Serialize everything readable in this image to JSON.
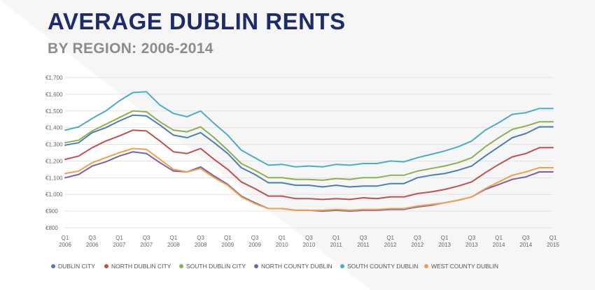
{
  "page": {
    "title": "AVERAGE DUBLIN RENTS",
    "subtitle": "BY REGION: 2006-2014"
  },
  "chart_data": {
    "type": "line",
    "title": "AVERAGE DUBLIN RENTS",
    "subtitle": "BY REGION: 2006-2014",
    "xlabel": "",
    "ylabel": "",
    "ylim": [
      800,
      1700
    ],
    "yticks": [
      800,
      900,
      1000,
      1100,
      1200,
      1300,
      1400,
      1500,
      1600,
      1700
    ],
    "ytick_labels": [
      "€800",
      "€900",
      "€1,000",
      "€1,100",
      "€1,200",
      "€1,300",
      "€1,400",
      "€1,500",
      "€1,600",
      "€1,700"
    ],
    "xtick_labels": [
      {
        "q": "Q1",
        "y": "2006"
      },
      {
        "q": "Q3",
        "y": "2006"
      },
      {
        "q": "Q1",
        "y": "2007"
      },
      {
        "q": "Q3",
        "y": "2007"
      },
      {
        "q": "Q1",
        "y": "2008"
      },
      {
        "q": "Q3",
        "y": "2008"
      },
      {
        "q": "Q1",
        "y": "2009"
      },
      {
        "q": "Q3",
        "y": "2009"
      },
      {
        "q": "Q1",
        "y": "2010"
      },
      {
        "q": "Q3",
        "y": "2010"
      },
      {
        "q": "Q1",
        "y": "2011"
      },
      {
        "q": "Q3",
        "y": "2011"
      },
      {
        "q": "Q1",
        "y": "2012"
      },
      {
        "q": "Q3",
        "y": "2012"
      },
      {
        "q": "Q1",
        "y": "2013"
      },
      {
        "q": "Q3",
        "y": "2013"
      },
      {
        "q": "Q1",
        "y": "2014"
      },
      {
        "q": "Q3",
        "y": "2014"
      },
      {
        "q": "Q1",
        "y": "2015"
      }
    ],
    "grid": true,
    "legend": "bottom",
    "series": [
      {
        "name": "DUBLIN CITY",
        "color": "#4a7fb5",
        "values": [
          1295,
          1310,
          1370,
          1400,
          1440,
          1475,
          1470,
          1415,
          1355,
          1340,
          1370,
          1310,
          1245,
          1160,
          1120,
          1070,
          1070,
          1055,
          1055,
          1045,
          1055,
          1045,
          1050,
          1050,
          1065,
          1065,
          1100,
          1115,
          1125,
          1145,
          1170,
          1230,
          1285,
          1340,
          1365,
          1405,
          1405
        ]
      },
      {
        "name": "NORTH DUBLIN CITY",
        "color": "#c0504d",
        "values": [
          1210,
          1230,
          1280,
          1320,
          1350,
          1385,
          1380,
          1320,
          1255,
          1245,
          1275,
          1210,
          1150,
          1075,
          1035,
          990,
          990,
          975,
          975,
          970,
          975,
          970,
          980,
          975,
          985,
          985,
          1005,
          1015,
          1030,
          1050,
          1075,
          1130,
          1180,
          1225,
          1245,
          1280,
          1280
        ]
      },
      {
        "name": "SOUTH DUBLIN CITY",
        "color": "#8db04f",
        "values": [
          1310,
          1325,
          1380,
          1420,
          1460,
          1500,
          1495,
          1435,
          1385,
          1375,
          1405,
          1340,
          1265,
          1185,
          1145,
          1100,
          1100,
          1090,
          1090,
          1085,
          1095,
          1090,
          1100,
          1100,
          1115,
          1115,
          1140,
          1155,
          1170,
          1190,
          1220,
          1285,
          1340,
          1390,
          1410,
          1435,
          1435
        ]
      },
      {
        "name": "NORTH COUNTY DUBLIN",
        "color": "#7d5fa8",
        "values": [
          1100,
          1120,
          1170,
          1195,
          1230,
          1255,
          1245,
          1190,
          1140,
          1135,
          1165,
          1110,
          1060,
          990,
          950,
          915,
          915,
          905,
          905,
          900,
          905,
          900,
          905,
          905,
          910,
          910,
          925,
          935,
          950,
          965,
          985,
          1030,
          1060,
          1090,
          1105,
          1135,
          1135
        ]
      },
      {
        "name": "SOUTH COUNTY DUBLIN",
        "color": "#4bacc6",
        "values": [
          1385,
          1405,
          1455,
          1500,
          1560,
          1610,
          1615,
          1535,
          1485,
          1465,
          1500,
          1425,
          1355,
          1265,
          1220,
          1175,
          1180,
          1165,
          1170,
          1165,
          1180,
          1175,
          1185,
          1185,
          1200,
          1195,
          1220,
          1240,
          1260,
          1285,
          1320,
          1385,
          1430,
          1480,
          1490,
          1515,
          1515
        ]
      },
      {
        "name": "WEST COUNTY DUBLIN",
        "color": "#f0a048",
        "values": [
          1125,
          1140,
          1190,
          1220,
          1250,
          1275,
          1270,
          1210,
          1150,
          1135,
          1155,
          1100,
          1055,
          985,
          945,
          915,
          915,
          905,
          905,
          905,
          910,
          905,
          910,
          910,
          915,
          915,
          930,
          940,
          950,
          965,
          985,
          1035,
          1075,
          1115,
          1135,
          1160,
          1160
        ]
      }
    ]
  }
}
